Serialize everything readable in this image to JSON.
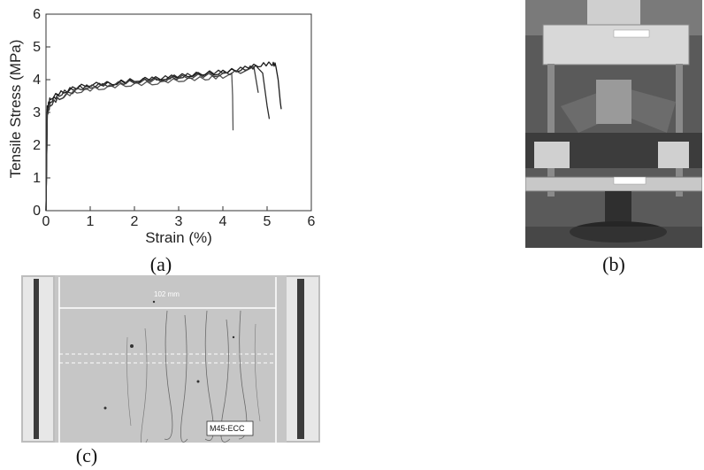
{
  "chart_data": {
    "type": "line",
    "xlabel": "Strain (%)",
    "ylabel": "Tensile Stress (MPa)",
    "xlim": [
      0,
      6
    ],
    "ylim": [
      0,
      6
    ],
    "xticks": [
      0,
      1,
      2,
      3,
      4,
      5,
      6
    ],
    "yticks": [
      0,
      1,
      2,
      3,
      4,
      5,
      6
    ],
    "grid": false,
    "series": [
      {
        "color": "#2a2a2a",
        "x": [
          0,
          0.03,
          0.1,
          0.3,
          0.6,
          1.0,
          1.5,
          2.0,
          2.5,
          3.0,
          3.5,
          4.0,
          4.5,
          4.8,
          4.9,
          5.0,
          5.05
        ],
        "y": [
          0,
          3.0,
          3.4,
          3.6,
          3.8,
          3.85,
          3.95,
          4.0,
          4.1,
          4.15,
          4.25,
          4.3,
          4.4,
          4.45,
          4.2,
          3.2,
          2.8
        ]
      },
      {
        "color": "#555555",
        "x": [
          0,
          0.03,
          0.1,
          0.3,
          0.7,
          1.2,
          1.8,
          2.4,
          3.0,
          3.6,
          4.0,
          4.2,
          4.22,
          4.23
        ],
        "y": [
          0,
          3.1,
          3.3,
          3.5,
          3.7,
          3.8,
          3.9,
          3.95,
          4.05,
          4.1,
          4.15,
          4.2,
          3.5,
          2.45
        ]
      },
      {
        "color": "#1a1a1a",
        "x": [
          0,
          0.03,
          0.1,
          0.4,
          0.9,
          1.5,
          2.0,
          2.6,
          3.2,
          3.8,
          4.3,
          4.8,
          5.1,
          5.2,
          5.25,
          5.3,
          5.32
        ],
        "y": [
          0,
          3.2,
          3.5,
          3.7,
          3.9,
          3.95,
          4.05,
          4.1,
          4.2,
          4.25,
          4.35,
          4.5,
          4.55,
          4.5,
          4.0,
          3.3,
          3.1
        ]
      },
      {
        "color": "#3a3a3a",
        "x": [
          0,
          0.03,
          0.1,
          0.3,
          0.8,
          1.4,
          2.0,
          2.6,
          3.2,
          3.8,
          4.4,
          4.7,
          4.75,
          4.8
        ],
        "y": [
          0,
          3.0,
          3.3,
          3.5,
          3.8,
          3.9,
          4.0,
          4.05,
          4.15,
          4.2,
          4.3,
          4.4,
          4.0,
          3.6
        ]
      }
    ]
  },
  "captions": {
    "a": "(a)",
    "b": "(b)",
    "c": "(c)"
  },
  "photo_c": {
    "dimension_label": "102 mm",
    "specimen_label": "M45-ECC"
  }
}
